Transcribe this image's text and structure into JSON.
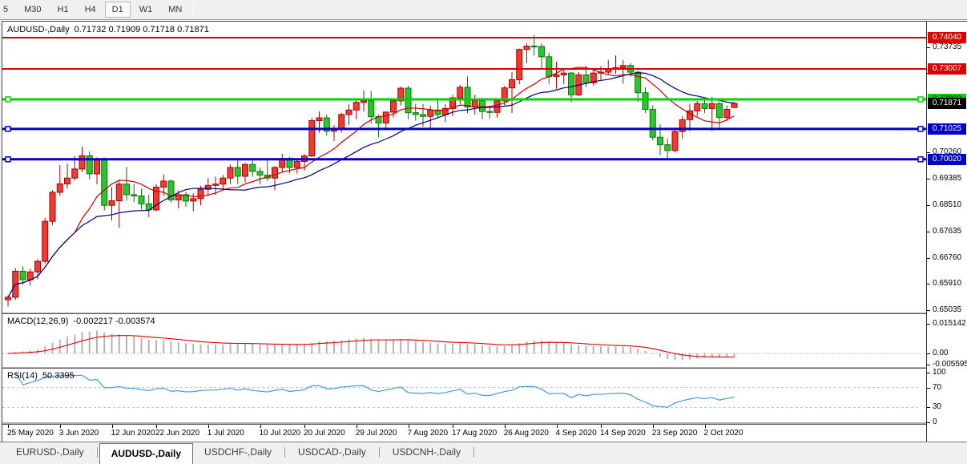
{
  "toolbar": {
    "timeframes": [
      "5",
      "M30",
      "H1",
      "H4",
      "D1",
      "W1",
      "MN"
    ],
    "active_timeframe": "D1"
  },
  "chart": {
    "title_symbol": "AUDUSD-,Daily",
    "ohlc": "0.71732 0.71909 0.71718 0.71871",
    "current_price": "0.71871",
    "colors": {
      "bull_fill": "#ef3b32",
      "bull_stroke": "#a80000",
      "bear_fill": "#2fc32f",
      "bear_stroke": "#067806",
      "ma_fast": "#cc0000",
      "ma_slow": "#000080",
      "hline_red": "#dd0000",
      "hline_green": "#00d300",
      "hline_blue": "#0000cd",
      "macd_bar": "#b4b4b4",
      "macd_signal": "#dd0000",
      "rsi_line": "#3f9fdf",
      "badge_current_bg": "#000000"
    }
  },
  "hlines": [
    {
      "price": 0.7404,
      "label": "0.74040",
      "kind": "resistance",
      "color": "#dd0000",
      "width": 2,
      "handles": false,
      "badge_text_color": "#ffffff"
    },
    {
      "price": 0.73007,
      "label": "0.73007",
      "kind": "resistance",
      "color": "#dd0000",
      "width": 2,
      "handles": false,
      "badge_text_color": "#ffffff"
    },
    {
      "price": 0.72002,
      "label": "0.72002",
      "kind": "pivot",
      "color": "#00d300",
      "width": 3,
      "handles": true,
      "badge_text_color": "#000000"
    },
    {
      "price": 0.71025,
      "label": "0.71025",
      "kind": "support",
      "color": "#0000cd",
      "width": 3,
      "handles": true,
      "badge_text_color": "#ffffff"
    },
    {
      "price": 0.7002,
      "label": "0.70020",
      "kind": "support",
      "color": "#0000cd",
      "width": 3,
      "handles": true,
      "badge_text_color": "#ffffff"
    }
  ],
  "price_axis_ticks": [
    {
      "v": 0.73735,
      "t": "0.73735"
    },
    {
      "v": 0.72885,
      "t": "0.72885"
    },
    {
      "v": 0.7026,
      "t": "0.70260"
    },
    {
      "v": 0.69385,
      "t": "0.69385"
    },
    {
      "v": 0.6851,
      "t": "0.68510"
    },
    {
      "v": 0.67635,
      "t": "0.67635"
    },
    {
      "v": 0.6676,
      "t": "0.66760"
    },
    {
      "v": 0.6591,
      "t": "0.65910"
    },
    {
      "v": 0.65035,
      "t": "0.65035"
    }
  ],
  "indicators": {
    "ma_fast": {
      "period": 10
    },
    "ma_slow": {
      "period": 20
    },
    "macd": {
      "name": "MACD(12,26,9)",
      "values_text": "-0.002217 -0.003574",
      "params": [
        12,
        26,
        9
      ],
      "axis_ticks": [
        {
          "v": 0.015142,
          "t": "0.015142"
        },
        {
          "v": 0.0,
          "t": "0.00"
        },
        {
          "v": -0.005595,
          "t": "-0.005595"
        }
      ]
    },
    "rsi": {
      "name": "RSI(14)",
      "value_text": "50.3395",
      "period": 14,
      "levels": [
        70,
        30
      ],
      "axis_ticks": [
        {
          "v": 100,
          "t": "100"
        },
        {
          "v": 70,
          "t": "70"
        },
        {
          "v": 30,
          "t": "30"
        },
        {
          "v": 0,
          "t": "0"
        }
      ]
    }
  },
  "tabs": [
    {
      "label": "EURUSD-,Daily",
      "active": false
    },
    {
      "label": "AUDUSD-,Daily",
      "active": true
    },
    {
      "label": "USDCHF-,Daily",
      "active": false
    },
    {
      "label": "USDCAD-,Daily",
      "active": false
    },
    {
      "label": "USDCNH-,Daily",
      "active": false
    }
  ],
  "chart_data": {
    "type": "candlestick",
    "symbol": "AUDUSD-",
    "timeframe": "Daily",
    "x_labels": [
      {
        "i": 0,
        "t": "25 May 2020"
      },
      {
        "i": 7,
        "t": "3 Jun 2020"
      },
      {
        "i": 14,
        "t": "12 Jun 2020"
      },
      {
        "i": 20,
        "t": "22 Jun 2020"
      },
      {
        "i": 27,
        "t": "1 Jul 2020"
      },
      {
        "i": 34,
        "t": "10 Jul 2020"
      },
      {
        "i": 40,
        "t": "20 Jul 2020"
      },
      {
        "i": 47,
        "t": "29 Jul 2020"
      },
      {
        "i": 54,
        "t": "7 Aug 2020"
      },
      {
        "i": 60,
        "t": "17 Aug 2020"
      },
      {
        "i": 67,
        "t": "26 Aug 2020"
      },
      {
        "i": 74,
        "t": "4 Sep 2020"
      },
      {
        "i": 80,
        "t": "14 Sep 2020"
      },
      {
        "i": 87,
        "t": "23 Sep 2020"
      },
      {
        "i": 94,
        "t": "2 Oct 2020"
      }
    ],
    "candles": [
      [
        "2020-05-25",
        0.6538,
        0.6552,
        0.6516,
        0.6546
      ],
      [
        "2020-05-26",
        0.6546,
        0.6642,
        0.6538,
        0.6632
      ],
      [
        "2020-05-27",
        0.6632,
        0.6648,
        0.6588,
        0.6604
      ],
      [
        "2020-05-28",
        0.6604,
        0.664,
        0.6585,
        0.663
      ],
      [
        "2020-05-29",
        0.663,
        0.6672,
        0.6606,
        0.6665
      ],
      [
        "2020-06-01",
        0.6665,
        0.6808,
        0.6658,
        0.6797
      ],
      [
        "2020-06-02",
        0.6797,
        0.69,
        0.6785,
        0.6893
      ],
      [
        "2020-06-03",
        0.6893,
        0.6983,
        0.6882,
        0.6921
      ],
      [
        "2020-06-04",
        0.6921,
        0.6988,
        0.6905,
        0.694
      ],
      [
        "2020-06-05",
        0.694,
        0.7013,
        0.6932,
        0.697
      ],
      [
        "2020-06-08",
        0.697,
        0.7043,
        0.696,
        0.7014
      ],
      [
        "2020-06-09",
        0.7014,
        0.7028,
        0.6935,
        0.6954
      ],
      [
        "2020-06-10",
        0.6954,
        0.7008,
        0.692,
        0.7001
      ],
      [
        "2020-06-11",
        0.7001,
        0.7008,
        0.6833,
        0.685
      ],
      [
        "2020-06-12",
        0.685,
        0.691,
        0.68,
        0.6865
      ],
      [
        "2020-06-15",
        0.6865,
        0.6935,
        0.6776,
        0.692
      ],
      [
        "2020-06-16",
        0.692,
        0.6977,
        0.6865,
        0.6885
      ],
      [
        "2020-06-17",
        0.6885,
        0.692,
        0.686,
        0.6881
      ],
      [
        "2020-06-18",
        0.6881,
        0.6905,
        0.6837,
        0.6855
      ],
      [
        "2020-06-19",
        0.6855,
        0.6885,
        0.681,
        0.6835
      ],
      [
        "2020-06-22",
        0.6835,
        0.692,
        0.683,
        0.691
      ],
      [
        "2020-06-23",
        0.691,
        0.6952,
        0.688,
        0.693
      ],
      [
        "2020-06-24",
        0.693,
        0.6935,
        0.686,
        0.6868
      ],
      [
        "2020-06-25",
        0.6868,
        0.69,
        0.684,
        0.6885
      ],
      [
        "2020-06-26",
        0.6885,
        0.6895,
        0.6845,
        0.6864
      ],
      [
        "2020-06-29",
        0.6864,
        0.689,
        0.683,
        0.6872
      ],
      [
        "2020-06-30",
        0.6872,
        0.6915,
        0.685,
        0.6903
      ],
      [
        "2020-07-01",
        0.6903,
        0.694,
        0.688,
        0.6916
      ],
      [
        "2020-07-02",
        0.6916,
        0.6945,
        0.6885,
        0.692
      ],
      [
        "2020-07-03",
        0.692,
        0.695,
        0.69,
        0.694
      ],
      [
        "2020-07-06",
        0.694,
        0.6985,
        0.692,
        0.6975
      ],
      [
        "2020-07-07",
        0.6975,
        0.6998,
        0.692,
        0.6946
      ],
      [
        "2020-07-08",
        0.6946,
        0.699,
        0.6925,
        0.6985
      ],
      [
        "2020-07-09",
        0.6985,
        0.7,
        0.6945,
        0.6962
      ],
      [
        "2020-07-10",
        0.6962,
        0.6975,
        0.692,
        0.695
      ],
      [
        "2020-07-13",
        0.695,
        0.7,
        0.693,
        0.694
      ],
      [
        "2020-07-14",
        0.694,
        0.698,
        0.69,
        0.6975
      ],
      [
        "2020-07-15",
        0.6975,
        0.702,
        0.696,
        0.7005
      ],
      [
        "2020-07-16",
        0.7005,
        0.701,
        0.6955,
        0.6975
      ],
      [
        "2020-07-17",
        0.6975,
        0.7005,
        0.6955,
        0.6995
      ],
      [
        "2020-07-20",
        0.6995,
        0.702,
        0.6965,
        0.7013
      ],
      [
        "2020-07-21",
        0.7013,
        0.714,
        0.701,
        0.713
      ],
      [
        "2020-07-22",
        0.713,
        0.716,
        0.709,
        0.7139
      ],
      [
        "2020-07-23",
        0.7139,
        0.715,
        0.708,
        0.7095
      ],
      [
        "2020-07-24",
        0.7095,
        0.7115,
        0.7063,
        0.71
      ],
      [
        "2020-07-27",
        0.71,
        0.7155,
        0.709,
        0.715
      ],
      [
        "2020-07-28",
        0.715,
        0.7185,
        0.7115,
        0.7165
      ],
      [
        "2020-07-29",
        0.7165,
        0.72,
        0.7135,
        0.719
      ],
      [
        "2020-07-30",
        0.719,
        0.723,
        0.716,
        0.7195
      ],
      [
        "2020-07-31",
        0.7195,
        0.7228,
        0.712,
        0.7143
      ],
      [
        "2020-08-03",
        0.7143,
        0.715,
        0.7075,
        0.7122
      ],
      [
        "2020-08-04",
        0.7122,
        0.716,
        0.71,
        0.7158
      ],
      [
        "2020-08-05",
        0.7158,
        0.72,
        0.714,
        0.7195
      ],
      [
        "2020-08-06",
        0.7195,
        0.7243,
        0.718,
        0.7237
      ],
      [
        "2020-08-07",
        0.7237,
        0.7245,
        0.7135,
        0.7156
      ],
      [
        "2020-08-10",
        0.7156,
        0.7185,
        0.713,
        0.715
      ],
      [
        "2020-08-11",
        0.715,
        0.7185,
        0.711,
        0.7144
      ],
      [
        "2020-08-12",
        0.7144,
        0.718,
        0.7105,
        0.7165
      ],
      [
        "2020-08-13",
        0.7165,
        0.72,
        0.714,
        0.715
      ],
      [
        "2020-08-14",
        0.715,
        0.7185,
        0.7125,
        0.717
      ],
      [
        "2020-08-17",
        0.717,
        0.7215,
        0.7145,
        0.7205
      ],
      [
        "2020-08-18",
        0.7205,
        0.7248,
        0.7185,
        0.724
      ],
      [
        "2020-08-19",
        0.724,
        0.7276,
        0.7155,
        0.7175
      ],
      [
        "2020-08-20",
        0.7175,
        0.7215,
        0.715,
        0.7196
      ],
      [
        "2020-08-21",
        0.7196,
        0.7205,
        0.7135,
        0.716
      ],
      [
        "2020-08-24",
        0.716,
        0.718,
        0.7135,
        0.7157
      ],
      [
        "2020-08-25",
        0.7157,
        0.7198,
        0.714,
        0.7195
      ],
      [
        "2020-08-26",
        0.7195,
        0.7245,
        0.718,
        0.7238
      ],
      [
        "2020-08-27",
        0.7238,
        0.729,
        0.7155,
        0.7265
      ],
      [
        "2020-08-28",
        0.7265,
        0.7368,
        0.725,
        0.7365
      ],
      [
        "2020-08-31",
        0.7365,
        0.7385,
        0.732,
        0.7376
      ],
      [
        "2020-09-01",
        0.7376,
        0.7413,
        0.7345,
        0.7375
      ],
      [
        "2020-09-02",
        0.7375,
        0.7385,
        0.73,
        0.7341
      ],
      [
        "2020-09-03",
        0.7341,
        0.7355,
        0.725,
        0.7276
      ],
      [
        "2020-09-04",
        0.7276,
        0.7325,
        0.7235,
        0.7281
      ],
      [
        "2020-09-07",
        0.7281,
        0.73,
        0.725,
        0.7287
      ],
      [
        "2020-09-08",
        0.7287,
        0.729,
        0.719,
        0.7215
      ],
      [
        "2020-09-09",
        0.7215,
        0.729,
        0.721,
        0.7281
      ],
      [
        "2020-09-10",
        0.7281,
        0.731,
        0.724,
        0.7255
      ],
      [
        "2020-09-11",
        0.7255,
        0.7295,
        0.7245,
        0.7287
      ],
      [
        "2020-09-14",
        0.7287,
        0.731,
        0.7265,
        0.729
      ],
      [
        "2020-09-15",
        0.729,
        0.733,
        0.7283,
        0.73
      ],
      [
        "2020-09-16",
        0.73,
        0.7345,
        0.7285,
        0.7305
      ],
      [
        "2020-09-17",
        0.7305,
        0.733,
        0.7252,
        0.7312
      ],
      [
        "2020-09-18",
        0.7312,
        0.732,
        0.7275,
        0.729
      ],
      [
        "2020-09-21",
        0.729,
        0.7295,
        0.7192,
        0.7222
      ],
      [
        "2020-09-22",
        0.7222,
        0.724,
        0.7155,
        0.7167
      ],
      [
        "2020-09-23",
        0.7167,
        0.718,
        0.7065,
        0.7075
      ],
      [
        "2020-09-24",
        0.7075,
        0.7118,
        0.7016,
        0.705
      ],
      [
        "2020-09-25",
        0.705,
        0.707,
        0.7006,
        0.7031
      ],
      [
        "2020-09-28",
        0.7031,
        0.71,
        0.7025,
        0.7094
      ],
      [
        "2020-09-29",
        0.7094,
        0.7145,
        0.707,
        0.7133
      ],
      [
        "2020-09-30",
        0.7133,
        0.7185,
        0.7095,
        0.7162
      ],
      [
        "2020-10-01",
        0.7162,
        0.7195,
        0.7145,
        0.7186
      ],
      [
        "2020-10-02",
        0.7186,
        0.7198,
        0.7155,
        0.717
      ],
      [
        "2020-10-05",
        0.717,
        0.7208,
        0.7095,
        0.7186
      ],
      [
        "2020-10-06",
        0.7186,
        0.7192,
        0.71,
        0.714
      ],
      [
        "2020-10-07",
        0.714,
        0.718,
        0.7128,
        0.7167
      ],
      [
        "2020-10-08",
        0.71732,
        0.71909,
        0.71718,
        0.71871
      ]
    ]
  }
}
